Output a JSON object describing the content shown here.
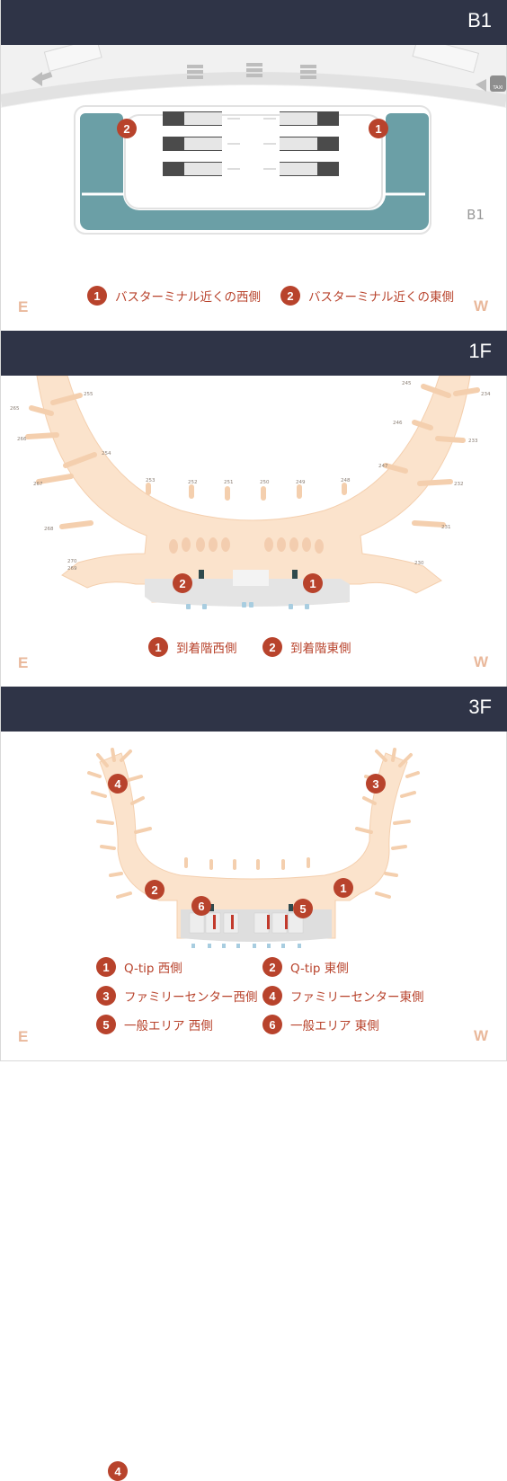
{
  "floors": {
    "b1": {
      "title": "B1",
      "map_label": "B1",
      "east": "E",
      "west": "W",
      "taxi": "TAXI",
      "markers": [
        "1",
        "2"
      ],
      "legend": [
        {
          "num": "1",
          "text": "バスターミナル近くの西側"
        },
        {
          "num": "2",
          "text": "バスターミナル近くの東側"
        }
      ]
    },
    "f1": {
      "title": "1F",
      "east": "E",
      "west": "W",
      "gates": [
        "255",
        "265",
        "266",
        "254",
        "267",
        "268",
        "270",
        "269",
        "253",
        "252",
        "251",
        "250",
        "249",
        "248",
        "245",
        "234",
        "246",
        "233",
        "247",
        "232",
        "231",
        "230"
      ],
      "markers": [
        "1",
        "2"
      ],
      "legend": [
        {
          "num": "1",
          "text": "到着階西側"
        },
        {
          "num": "2",
          "text": "到着階東側"
        }
      ]
    },
    "f3": {
      "title": "3F",
      "east": "E",
      "west": "W",
      "markers": [
        "1",
        "2",
        "3",
        "4",
        "5",
        "6"
      ],
      "legend": [
        {
          "num": "1",
          "text": "Q-tip 西側"
        },
        {
          "num": "2",
          "text": "Q-tip 東側"
        },
        {
          "num": "3",
          "text": "ファミリーセンター西側"
        },
        {
          "num": "4",
          "text": "ファミリーセンター東側"
        },
        {
          "num": "5",
          "text": "一般エリア 西側"
        },
        {
          "num": "6",
          "text": "一般エリア 東側"
        }
      ]
    }
  },
  "colors": {
    "header": "#2f3447",
    "accent": "#b8432c",
    "terminal": "#fbe3cc",
    "bus_area": "#6b9fa6",
    "direction": "#e9b89b"
  }
}
